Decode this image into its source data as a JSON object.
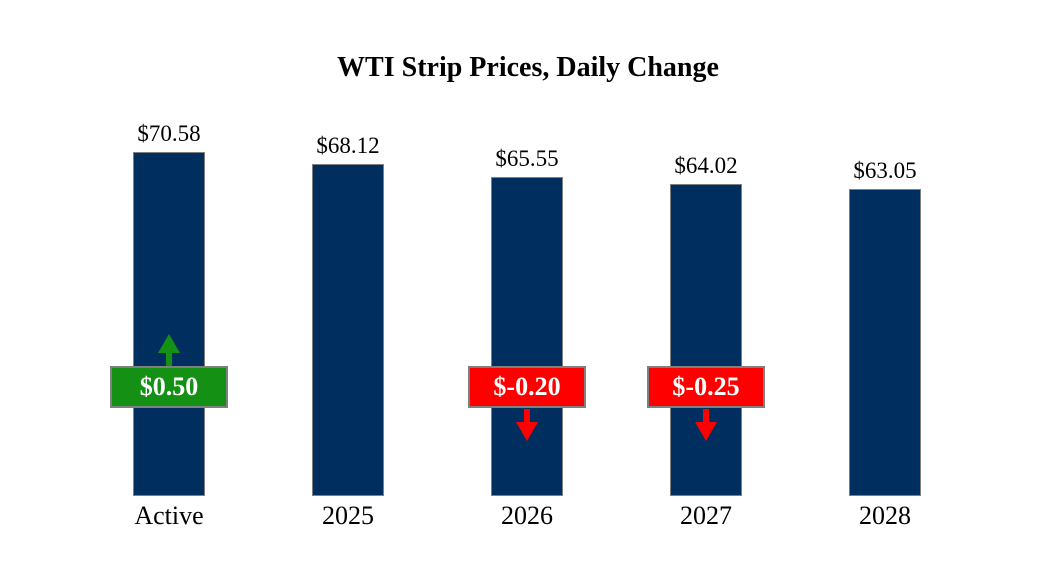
{
  "chart_data": {
    "type": "bar",
    "title": "WTI Strip Prices, Daily Change",
    "categories": [
      "Active",
      "2025",
      "2026",
      "2027",
      "2028"
    ],
    "values": [
      70.58,
      68.12,
      65.55,
      64.02,
      63.05
    ],
    "value_labels": [
      "$70.58",
      "$68.12",
      "$65.55",
      "$64.02",
      "$63.05"
    ],
    "daily_changes": [
      0.5,
      null,
      -0.2,
      -0.25,
      null
    ],
    "change_labels": [
      "$0.50",
      null,
      "$-0.20",
      "$-0.25",
      null
    ],
    "xlabel": "",
    "ylabel": "",
    "ylim": [
      0,
      72.6
    ],
    "grid": false,
    "legend": false,
    "colors": {
      "bar": "#002F5F",
      "bar_border": "#7F7F7F",
      "positive": "#149014",
      "negative": "#FF0000",
      "badge_border": "#7F7F7F",
      "badge_text": "#FFFFFF",
      "label_text": "#000000",
      "background": "#FFFFFF"
    }
  }
}
